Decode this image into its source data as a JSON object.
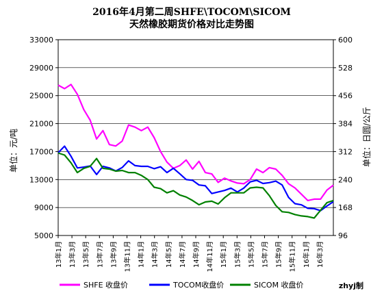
{
  "chart_data": {
    "type": "line",
    "title": "2016年4月第二周SHFE\\TOCOM\\SICOM",
    "subtitle": "天然橡胶期货价格对比走势图",
    "ylabel_left": "单位：元/吨",
    "ylabel_right": "单位：日圆/公斤",
    "author": "zhyj制",
    "y_left": {
      "min": 5000,
      "max": 33000,
      "ticks": [
        "5000",
        "9000",
        "13000",
        "17000",
        "21000",
        "25000",
        "29000",
        "33000"
      ]
    },
    "y_right": {
      "min": 96,
      "max": 600,
      "ticks": [
        "96",
        "168",
        "240",
        "312",
        "384",
        "456",
        "528",
        "600"
      ]
    },
    "x_ticks": [
      "13年1月",
      "13年3月",
      "13年5月",
      "13年7月",
      "13年9月",
      "13年11月",
      "14年1月",
      "14年3月",
      "14年5月",
      "14年7月",
      "14年9月",
      "14年11月",
      "15年1月",
      "15年3月",
      "15年5月",
      "15年7月",
      "15年9月",
      "15年11月",
      "16年1月",
      "16年3月"
    ],
    "grid": true,
    "legend_position": "bottom",
    "series": [
      {
        "name": "SHFE 收盘价",
        "color": "#ff00ff",
        "axis": "left",
        "values": [
          26500,
          26000,
          26600,
          25200,
          23000,
          21500,
          18800,
          20000,
          18000,
          17800,
          18500,
          20800,
          20500,
          20000,
          20500,
          19000,
          17000,
          15500,
          14600,
          15000,
          15800,
          14500,
          15600,
          14000,
          13800,
          12600,
          13200,
          12800,
          12500,
          12400,
          13000,
          14500,
          14000,
          14700,
          14500,
          13600,
          12400,
          11800,
          10900,
          10000,
          10200,
          10200,
          11500,
          12200
        ]
      },
      {
        "name": "TOCOM收盘价",
        "color": "#0000ff",
        "axis": "right",
        "values": [
          309,
          326,
          300,
          270,
          272,
          275,
          253,
          274,
          270,
          262,
          271,
          288,
          276,
          274,
          274,
          268,
          273,
          258,
          269,
          255,
          240,
          238,
          226,
          224,
          204,
          208,
          212,
          218,
          208,
          218,
          234,
          238,
          230,
          232,
          236,
          226,
          194,
          178,
          175,
          166,
          165,
          160,
          172,
          183
        ]
      },
      {
        "name": "SICOM 收盘价",
        "color": "#008000",
        "axis": "left",
        "values": [
          16800,
          16500,
          15400,
          14000,
          14600,
          14900,
          16000,
          14600,
          14500,
          14200,
          14300,
          14000,
          14000,
          13600,
          13000,
          11900,
          11700,
          11100,
          11400,
          10800,
          10500,
          10000,
          9400,
          9800,
          9900,
          9500,
          10400,
          11100,
          11100,
          11100,
          11800,
          11900,
          11800,
          10700,
          9300,
          8400,
          8300,
          8000,
          7800,
          7700,
          7500,
          8600,
          9700,
          10000
        ]
      }
    ]
  }
}
